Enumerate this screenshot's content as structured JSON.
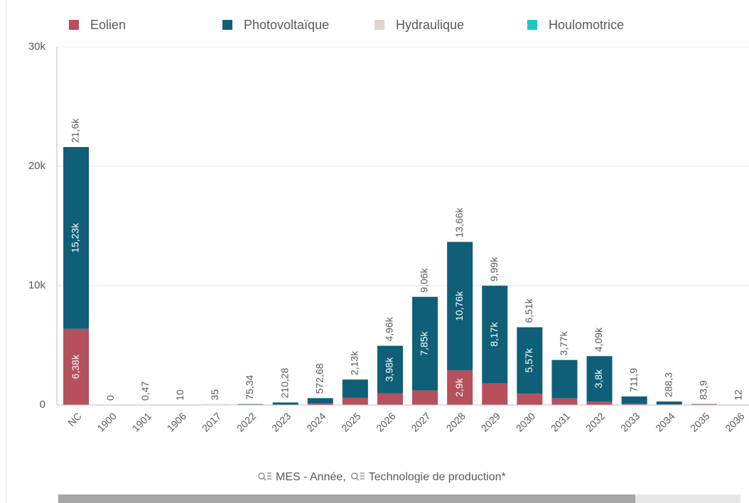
{
  "chart_data": {
    "type": "stacked_bar",
    "categories": [
      "NC",
      "1900",
      "1901",
      "1906",
      "2017",
      "2022",
      "2023",
      "2024",
      "2025",
      "2026",
      "2027",
      "2028",
      "2029",
      "2030",
      "2031",
      "2032",
      "2033",
      "2034",
      "2035",
      "2036"
    ],
    "series": [
      {
        "name": "Eolien",
        "color": "#b5505c",
        "values": [
          6380,
          0,
          0,
          0,
          35,
          40,
          0,
          150,
          600,
          980,
          1210,
          2900,
          1820,
          940,
          550,
          290,
          100,
          50,
          83.9,
          0
        ],
        "value_labels": [
          "6,38k",
          null,
          null,
          null,
          null,
          null,
          null,
          null,
          null,
          null,
          null,
          "2,9k",
          null,
          null,
          null,
          null,
          null,
          null,
          null,
          null
        ]
      },
      {
        "name": "Photovoltaïque",
        "color": "#0f5f78",
        "values": [
          15230,
          0,
          0,
          0,
          0,
          35.34,
          210.28,
          422.68,
          1530,
          3980,
          7850,
          10760,
          8170,
          5570,
          3220,
          3800,
          611.9,
          238.3,
          0,
          12
        ],
        "value_labels": [
          "15,23k",
          null,
          null,
          null,
          null,
          null,
          null,
          null,
          null,
          "3,98k",
          "7,85k",
          "10,76k",
          "8,17k",
          "5,57k",
          null,
          "3,8k",
          null,
          null,
          null,
          null
        ]
      },
      {
        "name": "Hydraulique",
        "color": "#ddd5d2",
        "values": [
          0,
          0,
          0.47,
          10,
          0,
          0,
          0,
          0,
          0,
          0,
          0,
          0,
          0,
          0,
          0,
          0,
          0,
          0,
          0,
          0
        ]
      },
      {
        "name": "Houlomotrice",
        "color": "#1fc6c6",
        "values": [
          0,
          0,
          0,
          0,
          0,
          0,
          0,
          0,
          0,
          0,
          0,
          0,
          0,
          0,
          0,
          0,
          0,
          0,
          0,
          0
        ]
      }
    ],
    "totals": [
      21600,
      0,
      0.47,
      10,
      35,
      75.34,
      210.28,
      572.68,
      2130,
      4960,
      9060,
      13660,
      9990,
      6510,
      3770,
      4090,
      711.9,
      288.3,
      83.9,
      12
    ],
    "total_labels": [
      "21,6k",
      "0",
      "0,47",
      "10",
      "35",
      "75,34",
      "210,28",
      "572,68",
      "2,13k",
      "4,96k",
      "9,06k",
      "13,66k",
      "9,99k",
      "6,51k",
      "3,77k",
      "4,09k",
      "711,9",
      "288,3",
      "83,9",
      "12"
    ],
    "ylim": [
      0,
      30000
    ],
    "yticks": [
      0,
      {
        "value": 10000,
        "label": "10k"
      },
      {
        "value": 20000,
        "label": "20k"
      },
      {
        "value": 30000,
        "label": "30k"
      }
    ],
    "grid": true,
    "legend": "top",
    "x_label_parts": [
      "MES - Année,",
      "Technologie de production*"
    ]
  }
}
